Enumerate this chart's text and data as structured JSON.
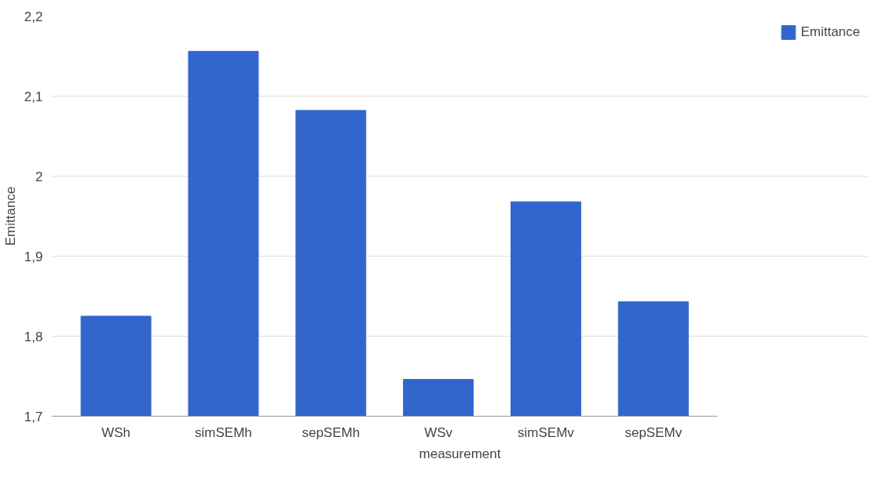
{
  "chart_data": {
    "type": "bar",
    "xlabel": "measurement",
    "ylabel": "Emittance",
    "categories": [
      "WSh",
      "simSEMh",
      "sepSEMh",
      "WSv",
      "simSEMv",
      "sepSEMv"
    ],
    "series": [
      {
        "name": "Emittance",
        "color": "#3366cc",
        "values": [
          1.825,
          2.156,
          2.082,
          1.746,
          1.968,
          1.843
        ]
      }
    ],
    "ylim": [
      1.7,
      2.2
    ],
    "yticks": [
      {
        "value": 1.7,
        "label": "1,7"
      },
      {
        "value": 1.8,
        "label": "1,8"
      },
      {
        "value": 1.9,
        "label": "1,9"
      },
      2,
      {
        "value": 2.1,
        "label": "2,1"
      },
      {
        "value": 2.2,
        "label": "2,2"
      }
    ],
    "grid": "y",
    "legend": "top right"
  }
}
